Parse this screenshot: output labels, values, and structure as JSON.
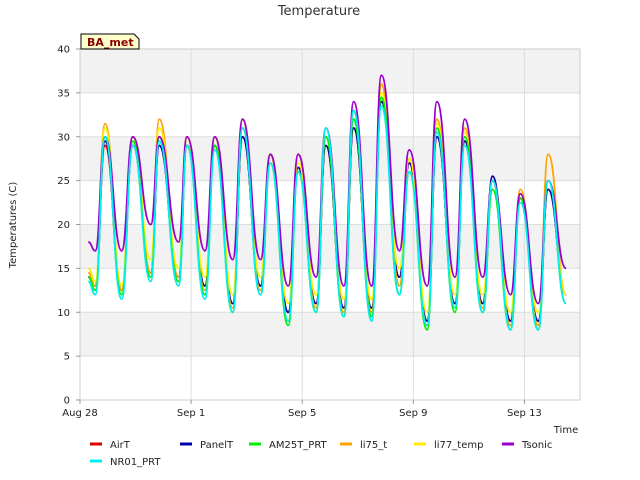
{
  "chart_data": {
    "type": "line",
    "title": "Temperature",
    "badge": "BA_met",
    "xlabel": "Time",
    "ylabel": "Temperatures (C)",
    "ylim": [
      0,
      40
    ],
    "yticks": [
      0,
      5,
      10,
      15,
      20,
      25,
      30,
      35,
      40
    ],
    "xlim_days": [
      0,
      18
    ],
    "xticks": [
      {
        "day": 0,
        "label": "Aug 28"
      },
      {
        "day": 4,
        "label": "Sep 1"
      },
      {
        "day": 8,
        "label": "Sep 5"
      },
      {
        "day": 12,
        "label": "Sep 9"
      },
      {
        "day": 16,
        "label": "Sep 13"
      }
    ],
    "grid": true,
    "legend_position": "bottom",
    "x_days": [
      0.3,
      0.55,
      0.9,
      1.5,
      1.9,
      2.55,
      2.85,
      3.55,
      3.85,
      4.5,
      4.85,
      5.5,
      5.85,
      6.5,
      6.85,
      7.5,
      7.85,
      8.5,
      8.85,
      9.5,
      9.85,
      10.5,
      10.85,
      11.5,
      11.85,
      12.5,
      12.85,
      13.5,
      13.85,
      14.5,
      14.85,
      15.5,
      15.85,
      16.5,
      16.85,
      17.5
    ],
    "series": [
      {
        "name": "AirT",
        "color": "#dd0000",
        "values": [
          14,
          13,
          29,
          12.5,
          29,
          14.5,
          29,
          14,
          29,
          13,
          29,
          11,
          30,
          13,
          28,
          10,
          26.5,
          11,
          29,
          10.5,
          31,
          10.5,
          34,
          14,
          27,
          9,
          30,
          11,
          29.5,
          11,
          25,
          9,
          23,
          9,
          24,
          12
        ]
      },
      {
        "name": "PanelT",
        "color": "#0000aa",
        "values": [
          14,
          13,
          29.5,
          12.5,
          29,
          14.5,
          29,
          14,
          29,
          13,
          29,
          11,
          30,
          13,
          28,
          10,
          26.5,
          11,
          29,
          10.5,
          31,
          10.5,
          34,
          14,
          27,
          9,
          30,
          11,
          29.5,
          11,
          25.5,
          9,
          23,
          9,
          24,
          12
        ]
      },
      {
        "name": "AM25T_PRT",
        "color": "#00ee00",
        "values": [
          14,
          12.5,
          30,
          12,
          29.5,
          14,
          30,
          13.5,
          29,
          12,
          29,
          10,
          31,
          12,
          27,
          8.5,
          26,
          10,
          30,
          9.5,
          32,
          9.5,
          34.5,
          12,
          26,
          8,
          31,
          10,
          30,
          10,
          24,
          8,
          23,
          8,
          25,
          11
        ]
      },
      {
        "name": "li75_t",
        "color": "#ffa500",
        "values": [
          14.5,
          13,
          31.5,
          12.5,
          30,
          14.5,
          32,
          14,
          30,
          12.5,
          30,
          10.5,
          32,
          12.5,
          28,
          9,
          28,
          10.5,
          30,
          10,
          33,
          10,
          36,
          13,
          27.5,
          8.5,
          32,
          10.5,
          31,
          10.5,
          25,
          8.5,
          24,
          8.5,
          28,
          12
        ]
      },
      {
        "name": "li77_temp",
        "color": "#ffee00",
        "values": [
          15,
          13.5,
          31,
          13,
          30,
          16,
          31,
          15,
          30,
          14,
          30,
          12,
          31,
          14,
          28,
          11,
          27,
          12,
          30,
          11.5,
          32,
          11.5,
          35,
          15,
          27.5,
          10,
          31.5,
          12,
          30.5,
          12,
          25,
          10,
          23.5,
          10,
          25,
          12
        ]
      },
      {
        "name": "Tsonic",
        "color": "#9900cc",
        "values": [
          18,
          17,
          30,
          17,
          30,
          20,
          30,
          18,
          30,
          17,
          30,
          16,
          32,
          16,
          28,
          13,
          28,
          14,
          31,
          13,
          34,
          13,
          37,
          17,
          28.5,
          13,
          34,
          14,
          32,
          14,
          25,
          12,
          23.5,
          11,
          25,
          15
        ]
      },
      {
        "name": "NR01_PRT",
        "color": "#00eeee",
        "values": [
          13.5,
          12,
          30,
          11.5,
          29,
          13.5,
          29.5,
          13,
          29,
          11.5,
          28.5,
          10,
          31,
          12,
          27,
          9,
          26,
          10,
          31,
          9.5,
          33,
          9,
          33.5,
          12,
          26,
          8.5,
          30.5,
          10.5,
          29,
          10,
          25,
          8,
          22.5,
          8,
          25,
          11
        ]
      }
    ]
  }
}
